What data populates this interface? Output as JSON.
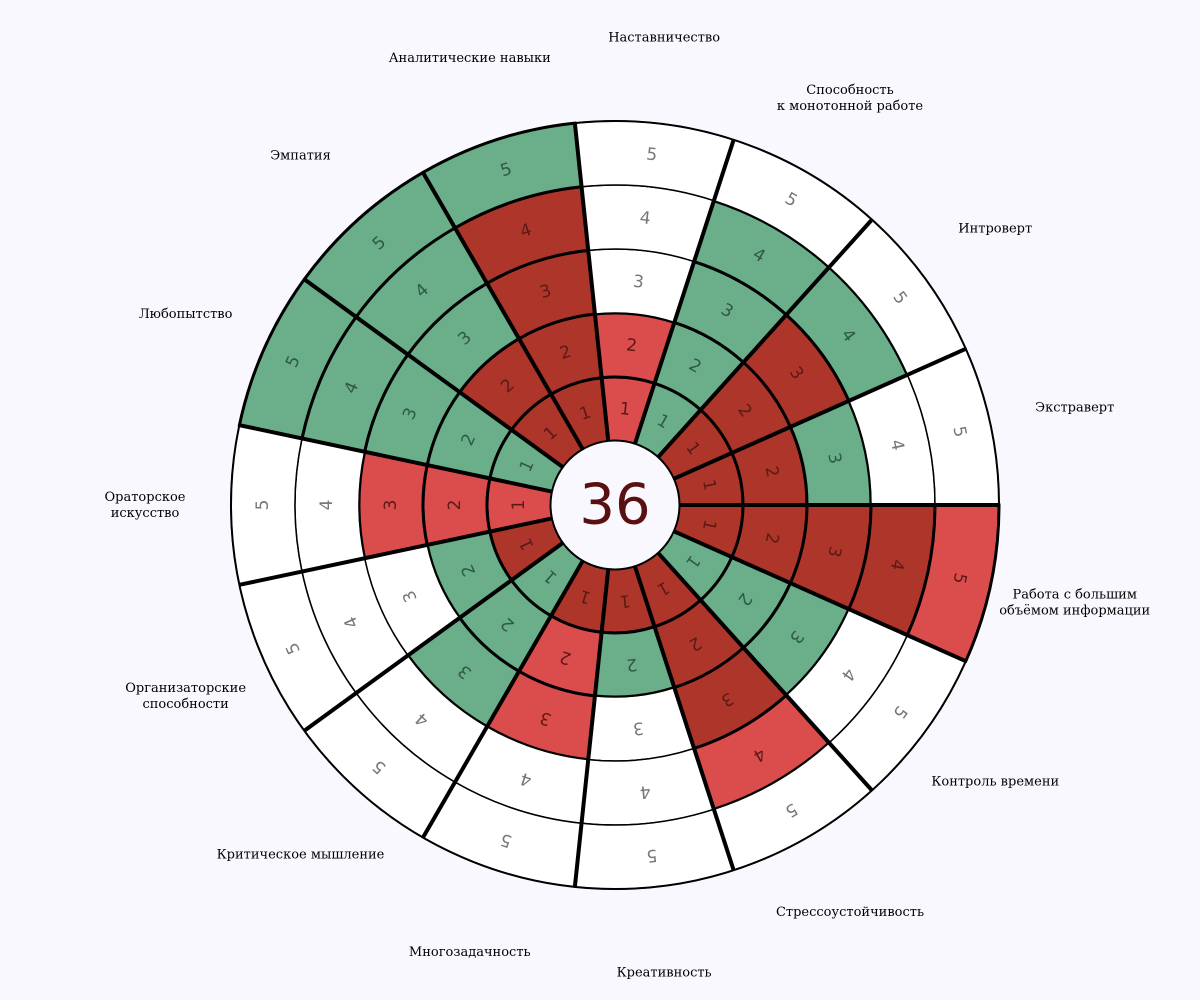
{
  "chart_data": {
    "type": "radial",
    "total": "36",
    "max_level": 5,
    "colors": {
      "green": "#6aae8a",
      "dark_red": "#ad352a",
      "red": "#db4c4c",
      "empty": "#ffffff",
      "outline": "#000000",
      "background": "#f9f8fe",
      "center_text": "#5a1010"
    },
    "categories": [
      {
        "label": [
          "Работа с большим",
          "объёмом информации"
        ],
        "levels": [
          "dark_red",
          "dark_red",
          "dark_red",
          "dark_red",
          "red"
        ]
      },
      {
        "label": [
          "Контроль времени"
        ],
        "levels": [
          "green",
          "green",
          "green",
          "empty",
          "empty"
        ]
      },
      {
        "label": [
          "Стрессоустойчивость"
        ],
        "levels": [
          "dark_red",
          "dark_red",
          "dark_red",
          "red",
          "empty"
        ]
      },
      {
        "label": [
          "Креативность"
        ],
        "levels": [
          "dark_red",
          "green",
          "empty",
          "empty",
          "empty"
        ]
      },
      {
        "label": [
          "Многозадачность"
        ],
        "levels": [
          "dark_red",
          "red",
          "red",
          "empty",
          "empty"
        ]
      },
      {
        "label": [
          "Критическое мышление"
        ],
        "levels": [
          "green",
          "green",
          "green",
          "empty",
          "empty"
        ]
      },
      {
        "label": [
          "Организаторские",
          "способности"
        ],
        "levels": [
          "dark_red",
          "green",
          "empty",
          "empty",
          "empty"
        ]
      },
      {
        "label": [
          "Ораторское",
          "искусство"
        ],
        "levels": [
          "red",
          "red",
          "red",
          "empty",
          "empty"
        ]
      },
      {
        "label": [
          "Любопытство"
        ],
        "levels": [
          "green",
          "green",
          "green",
          "green",
          "green"
        ]
      },
      {
        "label": [
          "Эмпатия"
        ],
        "levels": [
          "dark_red",
          "dark_red",
          "green",
          "green",
          "green"
        ]
      },
      {
        "label": [
          "Аналитические навыки"
        ],
        "levels": [
          "dark_red",
          "dark_red",
          "dark_red",
          "dark_red",
          "green"
        ]
      },
      {
        "label": [
          "Наставничество"
        ],
        "levels": [
          "red",
          "red",
          "empty",
          "empty",
          "empty"
        ]
      },
      {
        "label": [
          "Способность",
          "к монотонной работе"
        ],
        "levels": [
          "green",
          "green",
          "green",
          "green",
          "empty"
        ]
      },
      {
        "label": [
          "Интроверт"
        ],
        "levels": [
          "dark_red",
          "dark_red",
          "dark_red",
          "green",
          "empty"
        ]
      },
      {
        "label": [
          "Экстраверт"
        ],
        "levels": [
          "dark_red",
          "dark_red",
          "green",
          "empty",
          "empty"
        ]
      }
    ]
  }
}
